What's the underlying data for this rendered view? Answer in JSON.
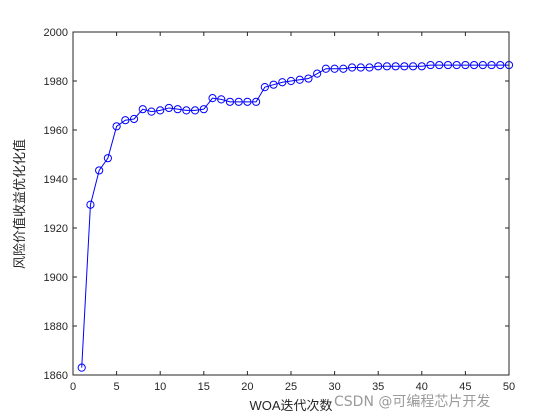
{
  "chart_data": {
    "type": "line",
    "title": "",
    "xlabel": "WOA迭代次数",
    "ylabel": "风险价值收益优化化值",
    "xlim": [
      0,
      50
    ],
    "ylim": [
      1860,
      2000
    ],
    "xticks": [
      0,
      5,
      10,
      15,
      20,
      25,
      30,
      35,
      40,
      45,
      50
    ],
    "yticks": [
      1860,
      1880,
      1900,
      1920,
      1940,
      1960,
      1980,
      2000
    ],
    "grid": false,
    "legend": "none",
    "line_color": "#0000ff",
    "marker": "circle",
    "series": [
      {
        "x": [
          1,
          2,
          3,
          4,
          5,
          6,
          7,
          8,
          9,
          10,
          11,
          12,
          13,
          14,
          15,
          16,
          17,
          18,
          19,
          20,
          21,
          22,
          23,
          24,
          25,
          26,
          27,
          28,
          29,
          30,
          31,
          32,
          33,
          34,
          35,
          36,
          37,
          38,
          39,
          40,
          41,
          42,
          43,
          44,
          45,
          46,
          47,
          48,
          49,
          50
        ],
        "values": [
          1863,
          1929.5,
          1943.5,
          1948.5,
          1961.5,
          1964,
          1964.5,
          1968.5,
          1967.5,
          1968,
          1969,
          1968.5,
          1968,
          1968,
          1968.5,
          1973,
          1972.5,
          1971.5,
          1971.5,
          1971.5,
          1971.5,
          1977.5,
          1978.5,
          1979.5,
          1980,
          1980.5,
          1981,
          1983,
          1985,
          1985,
          1985,
          1985.5,
          1985.5,
          1985.5,
          1986,
          1986,
          1986,
          1986,
          1986,
          1986,
          1986.5,
          1986.5,
          1986.5,
          1986.5,
          1986.5,
          1986.5,
          1986.5,
          1986.5,
          1986.5,
          1986.5
        ]
      }
    ]
  },
  "watermark": "CSDN @可编程芯片开发"
}
